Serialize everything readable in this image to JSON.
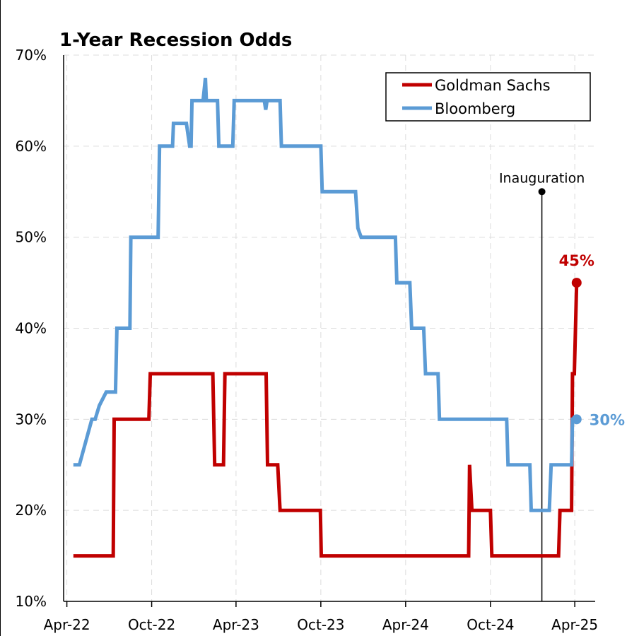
{
  "chart_data": {
    "type": "line",
    "title": "1-Year Recession Odds",
    "xlabel": "",
    "ylabel": "",
    "ylim": [
      10,
      70
    ],
    "y_ticks": [
      10,
      20,
      30,
      40,
      50,
      60,
      70
    ],
    "y_tick_labels": [
      "10%",
      "20%",
      "30%",
      "40%",
      "50%",
      "60%",
      "70%"
    ],
    "xlim": [
      "2022-03-25",
      "2025-05-15"
    ],
    "x_ticks": [
      "2022-04-01",
      "2022-10-01",
      "2023-04-01",
      "2023-10-01",
      "2024-04-01",
      "2024-10-01",
      "2025-04-01"
    ],
    "x_tick_labels": [
      "Apr-22",
      "Oct-22",
      "Apr-23",
      "Oct-23",
      "Apr-24",
      "Oct-24",
      "Apr-25"
    ],
    "grid": true,
    "legend": "top-right",
    "series": [
      {
        "name": "Goldman Sachs",
        "color": "#C00000",
        "points": [
          [
            "2022-04-15",
            15
          ],
          [
            "2022-07-10",
            15
          ],
          [
            "2022-07-12",
            30
          ],
          [
            "2022-09-25",
            30
          ],
          [
            "2022-09-28",
            35
          ],
          [
            "2023-02-10",
            35
          ],
          [
            "2023-02-14",
            25
          ],
          [
            "2023-03-05",
            25
          ],
          [
            "2023-03-08",
            35
          ],
          [
            "2023-06-05",
            35
          ],
          [
            "2023-06-08",
            25
          ],
          [
            "2023-06-30",
            25
          ],
          [
            "2023-07-05",
            20
          ],
          [
            "2023-09-30",
            20
          ],
          [
            "2023-10-02",
            15
          ],
          [
            "2024-08-15",
            15
          ],
          [
            "2024-08-17",
            25
          ],
          [
            "2024-08-22",
            20
          ],
          [
            "2024-10-01",
            20
          ],
          [
            "2024-10-04",
            15
          ],
          [
            "2025-02-25",
            15
          ],
          [
            "2025-02-28",
            20
          ],
          [
            "2025-03-25",
            20
          ],
          [
            "2025-03-27",
            35
          ],
          [
            "2025-03-31",
            35
          ],
          [
            "2025-04-05",
            45
          ]
        ]
      },
      {
        "name": "Bloomberg",
        "color": "#5B9BD5",
        "points": [
          [
            "2022-04-15",
            25
          ],
          [
            "2022-04-28",
            25
          ],
          [
            "2022-05-25",
            30
          ],
          [
            "2022-06-01",
            30
          ],
          [
            "2022-06-10",
            31.5
          ],
          [
            "2022-06-25",
            33
          ],
          [
            "2022-07-15",
            33
          ],
          [
            "2022-07-18",
            40
          ],
          [
            "2022-08-15",
            40
          ],
          [
            "2022-08-17",
            50
          ],
          [
            "2022-10-15",
            50
          ],
          [
            "2022-10-18",
            60
          ],
          [
            "2022-11-15",
            60
          ],
          [
            "2022-11-17",
            62.5
          ],
          [
            "2022-12-15",
            62.5
          ],
          [
            "2022-12-22",
            60
          ],
          [
            "2022-12-25",
            60
          ],
          [
            "2022-12-27",
            65
          ],
          [
            "2023-01-20",
            65
          ],
          [
            "2023-01-25",
            67.5
          ],
          [
            "2023-01-27",
            65
          ],
          [
            "2023-02-20",
            65
          ],
          [
            "2023-02-23",
            60
          ],
          [
            "2023-03-25",
            60
          ],
          [
            "2023-03-28",
            65
          ],
          [
            "2023-06-01",
            65
          ],
          [
            "2023-06-04",
            64
          ],
          [
            "2023-06-07",
            65
          ],
          [
            "2023-07-05",
            65
          ],
          [
            "2023-07-08",
            60
          ],
          [
            "2023-10-01",
            60
          ],
          [
            "2023-10-04",
            55
          ],
          [
            "2023-12-15",
            55
          ],
          [
            "2023-12-20",
            51
          ],
          [
            "2023-12-27",
            50
          ],
          [
            "2024-03-10",
            50
          ],
          [
            "2024-03-13",
            45
          ],
          [
            "2024-04-10",
            45
          ],
          [
            "2024-04-14",
            40
          ],
          [
            "2024-05-10",
            40
          ],
          [
            "2024-05-14",
            35
          ],
          [
            "2024-06-10",
            35
          ],
          [
            "2024-06-13",
            30
          ],
          [
            "2024-11-05",
            30
          ],
          [
            "2024-11-08",
            25
          ],
          [
            "2024-12-25",
            25
          ],
          [
            "2024-12-28",
            20
          ],
          [
            "2025-02-05",
            20
          ],
          [
            "2025-02-09",
            25
          ],
          [
            "2025-03-25",
            25
          ],
          [
            "2025-03-27",
            30
          ],
          [
            "2025-04-05",
            30
          ]
        ]
      }
    ],
    "annotations": [
      {
        "text": "Inauguration",
        "x": "2025-01-20",
        "y": 55
      }
    ],
    "end_labels": [
      {
        "series": "Goldman Sachs",
        "text": "45%",
        "x": "2025-04-05",
        "y": 45
      },
      {
        "series": "Bloomberg",
        "text": "30%",
        "x": "2025-04-05",
        "y": 30
      }
    ]
  }
}
